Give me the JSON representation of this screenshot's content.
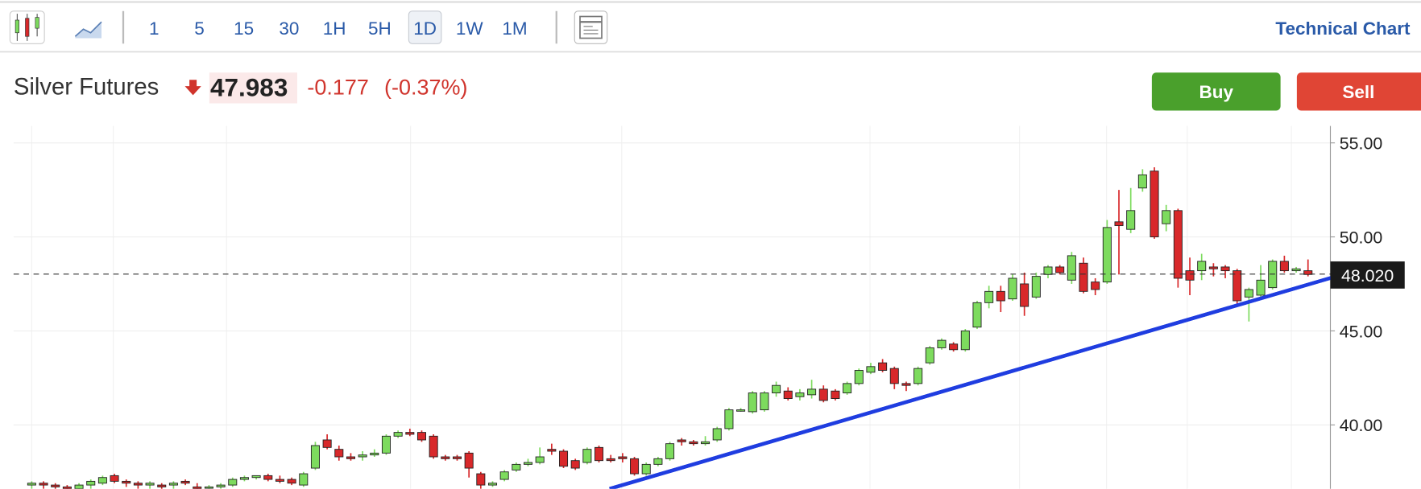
{
  "toolbar": {
    "intervals": [
      "1",
      "5",
      "15",
      "30",
      "1H",
      "5H",
      "1D",
      "1W",
      "1M"
    ],
    "selected": 6,
    "link": "Technical Chart"
  },
  "header": {
    "name": "Silver Futures",
    "price": 47.983,
    "change": -0.177,
    "change_percent": "(-0.37%)",
    "buttons": [
      "Buy",
      "Sell"
    ]
  },
  "chart_data": {
    "type": "candlestick",
    "up_color": "#7ddb5e",
    "down_color": "#d8282a",
    "ylim": [
      36.6,
      55.9
    ],
    "yticks": [
      {
        "value": 40,
        "label": "40.00"
      },
      {
        "value": 45,
        "label": "45.00"
      },
      {
        "value": 50,
        "label": "50.00"
      },
      {
        "value": 55,
        "label": "55.00"
      }
    ],
    "grid": true,
    "last_price": {
      "value": 48.02,
      "label": "48.020"
    },
    "trendline": {
      "color": "#1f3de0",
      "x": [
        48.9,
        115
      ],
      "y": [
        36.6,
        48.75
      ]
    },
    "ohlc": [
      [
        36.8,
        37.0,
        36.6,
        36.9
      ],
      [
        36.9,
        37.0,
        36.6,
        36.8
      ],
      [
        36.8,
        36.9,
        36.5,
        36.7
      ],
      [
        36.7,
        36.8,
        36.4,
        36.6
      ],
      [
        36.6,
        36.9,
        36.5,
        36.8
      ],
      [
        36.8,
        37.1,
        36.6,
        37.0
      ],
      [
        36.9,
        37.3,
        36.8,
        37.2
      ],
      [
        37.3,
        37.4,
        36.9,
        37.0
      ],
      [
        37.0,
        37.1,
        36.7,
        36.9
      ],
      [
        36.9,
        37.0,
        36.6,
        36.8
      ],
      [
        36.8,
        37.0,
        36.6,
        36.9
      ],
      [
        36.8,
        36.9,
        36.5,
        36.7
      ],
      [
        36.8,
        37.0,
        36.6,
        36.9
      ],
      [
        37.0,
        37.1,
        36.8,
        36.9
      ],
      [
        36.7,
        36.9,
        36.5,
        36.6
      ],
      [
        36.7,
        36.8,
        36.5,
        36.7
      ],
      [
        36.7,
        36.9,
        36.6,
        36.8
      ],
      [
        36.8,
        37.2,
        36.7,
        37.1
      ],
      [
        37.1,
        37.3,
        37.0,
        37.2
      ],
      [
        37.2,
        37.3,
        37.1,
        37.3
      ],
      [
        37.3,
        37.4,
        37.0,
        37.1
      ],
      [
        37.1,
        37.3,
        36.9,
        37.0
      ],
      [
        37.1,
        37.2,
        36.8,
        36.9
      ],
      [
        36.8,
        37.5,
        36.7,
        37.4
      ],
      [
        37.7,
        39.1,
        37.6,
        38.9
      ],
      [
        39.2,
        39.5,
        38.7,
        38.8
      ],
      [
        38.7,
        38.9,
        38.1,
        38.3
      ],
      [
        38.3,
        38.5,
        38.1,
        38.2
      ],
      [
        38.3,
        38.6,
        38.1,
        38.4
      ],
      [
        38.4,
        38.7,
        38.3,
        38.5
      ],
      [
        38.5,
        39.5,
        38.4,
        39.4
      ],
      [
        39.4,
        39.7,
        39.3,
        39.6
      ],
      [
        39.6,
        39.8,
        39.4,
        39.5
      ],
      [
        39.6,
        39.7,
        39.1,
        39.2
      ],
      [
        39.4,
        39.5,
        38.2,
        38.3
      ],
      [
        38.3,
        38.4,
        38.1,
        38.2
      ],
      [
        38.3,
        38.4,
        38.1,
        38.2
      ],
      [
        38.5,
        38.6,
        37.2,
        37.7
      ],
      [
        37.4,
        37.5,
        36.6,
        36.8
      ],
      [
        36.8,
        37.0,
        36.7,
        36.9
      ],
      [
        37.1,
        37.6,
        37.0,
        37.5
      ],
      [
        37.6,
        38.0,
        37.5,
        37.9
      ],
      [
        37.9,
        38.2,
        37.8,
        38.0
      ],
      [
        38.0,
        38.8,
        37.9,
        38.3
      ],
      [
        38.7,
        39.0,
        38.4,
        38.6
      ],
      [
        38.6,
        38.7,
        37.7,
        37.8
      ],
      [
        38.1,
        38.2,
        37.6,
        37.7
      ],
      [
        38.0,
        38.8,
        37.9,
        38.7
      ],
      [
        38.8,
        38.9,
        38.0,
        38.1
      ],
      [
        38.2,
        38.4,
        38.0,
        38.1
      ],
      [
        38.3,
        38.5,
        38.0,
        38.2
      ],
      [
        38.2,
        38.3,
        37.3,
        37.4
      ],
      [
        37.4,
        38.0,
        37.3,
        37.9
      ],
      [
        37.9,
        38.3,
        37.8,
        38.2
      ],
      [
        38.2,
        39.1,
        38.1,
        39.0
      ],
      [
        39.2,
        39.3,
        38.9,
        39.1
      ],
      [
        39.1,
        39.2,
        38.9,
        39.0
      ],
      [
        39.0,
        39.4,
        38.9,
        39.1
      ],
      [
        39.2,
        39.9,
        39.1,
        39.8
      ],
      [
        39.8,
        40.9,
        39.7,
        40.8
      ],
      [
        40.75,
        40.9,
        40.7,
        40.8
      ],
      [
        40.7,
        41.8,
        40.6,
        41.7
      ],
      [
        40.8,
        41.8,
        40.7,
        41.7
      ],
      [
        41.7,
        42.3,
        41.5,
        42.1
      ],
      [
        41.8,
        42.0,
        41.3,
        41.4
      ],
      [
        41.5,
        41.9,
        41.3,
        41.7
      ],
      [
        41.6,
        42.4,
        41.4,
        41.9
      ],
      [
        41.9,
        42.1,
        41.2,
        41.3
      ],
      [
        41.8,
        41.9,
        41.3,
        41.4
      ],
      [
        41.7,
        42.3,
        41.6,
        42.2
      ],
      [
        42.2,
        43.0,
        42.1,
        42.9
      ],
      [
        42.8,
        43.3,
        42.7,
        43.1
      ],
      [
        43.3,
        43.5,
        42.8,
        42.9
      ],
      [
        43.0,
        43.1,
        41.9,
        42.2
      ],
      [
        42.2,
        42.3,
        41.8,
        42.1
      ],
      [
        42.2,
        43.1,
        42.1,
        43.0
      ],
      [
        43.3,
        44.2,
        43.2,
        44.1
      ],
      [
        44.1,
        44.6,
        44.0,
        44.5
      ],
      [
        44.3,
        44.4,
        43.9,
        44.0
      ],
      [
        44.0,
        45.1,
        43.9,
        45.0
      ],
      [
        45.2,
        46.6,
        45.1,
        46.5
      ],
      [
        46.5,
        47.4,
        46.2,
        47.1
      ],
      [
        47.1,
        47.4,
        46.0,
        46.6
      ],
      [
        46.7,
        48.0,
        46.6,
        47.8
      ],
      [
        47.5,
        48.1,
        45.8,
        46.3
      ],
      [
        46.8,
        48.1,
        46.7,
        47.9
      ],
      [
        48.0,
        48.5,
        47.8,
        48.4
      ],
      [
        48.4,
        48.5,
        48.0,
        48.1
      ],
      [
        47.7,
        49.2,
        47.5,
        49.0
      ],
      [
        48.6,
        48.9,
        47.0,
        47.1
      ],
      [
        47.6,
        47.8,
        46.9,
        47.2
      ],
      [
        47.6,
        50.9,
        47.5,
        50.5
      ],
      [
        50.8,
        52.5,
        48.0,
        50.6
      ],
      [
        50.4,
        52.6,
        50.2,
        51.4
      ],
      [
        52.6,
        53.6,
        52.4,
        53.3
      ],
      [
        53.5,
        53.7,
        49.9,
        50.0
      ],
      [
        50.7,
        51.7,
        50.3,
        51.4
      ],
      [
        51.4,
        51.5,
        47.3,
        47.8
      ],
      [
        48.2,
        48.9,
        46.9,
        47.7
      ],
      [
        48.2,
        49.1,
        47.7,
        48.7
      ],
      [
        48.4,
        48.6,
        47.9,
        48.3
      ],
      [
        48.4,
        48.5,
        47.8,
        48.2
      ],
      [
        48.2,
        48.3,
        46.3,
        46.6
      ],
      [
        46.8,
        47.3,
        45.5,
        47.2
      ],
      [
        46.9,
        48.5,
        46.8,
        47.7
      ],
      [
        47.3,
        48.8,
        47.2,
        48.7
      ],
      [
        48.7,
        49.0,
        48.1,
        48.2
      ],
      [
        48.2,
        48.4,
        48.1,
        48.3
      ],
      [
        48.2,
        48.8,
        47.9,
        48.0
      ]
    ]
  }
}
